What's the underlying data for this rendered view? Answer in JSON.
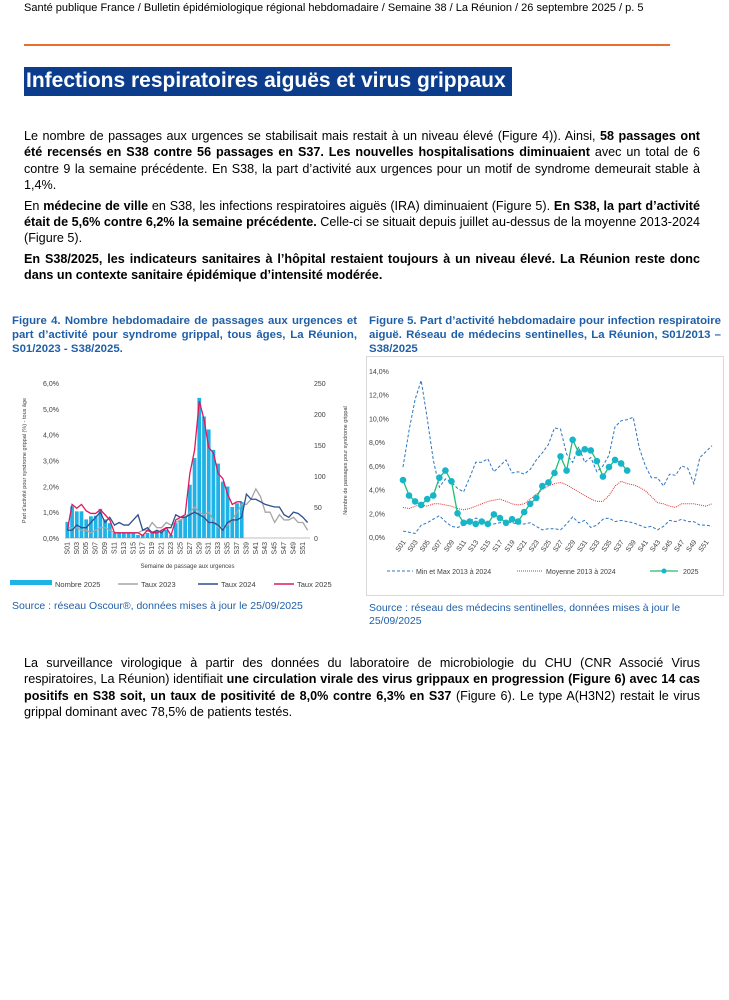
{
  "header": "Santé publique France / Bulletin épidémiologique régional hebdomadaire / Semaine 38 / La Réunion / 26 septembre 2025 / p. 5",
  "title": "Infections respiratoires aiguës et virus grippaux",
  "p1": {
    "a": "Le nombre de passages aux urgences se stabilisait mais restait à un niveau élevé (Figure 4)). Ainsi, ",
    "b": "58 passages ont été recensés en S38 contre 56 passages en S37. Les nouvelles hospitalisations diminuaient",
    "c": " avec un total de 6 contre 9 la semaine précédente. En S38, la part d’activité aux urgences pour un motif de syndrome demeurait stable à 1,4%."
  },
  "p2": {
    "a": "En ",
    "b": "médecine de ville",
    "c": " en S38, les infections respiratoires aiguës (IRA) diminuaient (Figure 5). ",
    "d": "En S38, la part d’activité était de 5,6% contre 6,2% la semaine précédente.",
    "e": " Celle-ci se situait depuis juillet au-dessus de la moyenne 2013-2024 (Figure 5)."
  },
  "p3": "En S38/2025, les indicateurs sanitaires à l’hôpital restaient toujours à un niveau élevé. La Réunion reste donc dans un contexte sanitaire épidémique d’intensité modérée.",
  "fig4": {
    "caption": "Figure 4. Nombre hebdomadaire de passages aux urgences et part d’activité pour syndrome grippal, tous âges, La Réunion, S01/2023 - S38/2025.",
    "source": "Source : réseau Oscour®,  données mises à jour le  25/09/2025"
  },
  "fig5": {
    "caption": "Figure 5.  Part d’activité hebdomadaire pour infection respiratoire aiguë. Réseau de médecins sentinelles, La Réunion, S01/2013 – S38/2025",
    "source": "Source : réseau des médecins sentinelles, données mises à jour le 25/09/2025"
  },
  "p4": {
    "a": "La surveillance virologique à partir des données du laboratoire de microbiologie du CHU (CNR Associé Virus respiratoires, La Réunion) identifiait ",
    "b": "une circulation virale des virus grippaux en progression (Figure 6) avec 14 cas positifs en S38 soit, un taux de positivité de 8,0% contre 6,3% en S37",
    "c": " (Figure 6). Le type A(H3N2) restait le virus grippal dominant avec 78,5% de patients testés."
  },
  "colors": {
    "bars": "#1fb2e6",
    "t2023": "#a6a6a6",
    "t2024": "#2f4f8f",
    "t2025": "#e0185e",
    "minmax": "#2e75c0",
    "moy": "#e03030",
    "s2025": "#1fbf6f",
    "marker": "#17b5c8"
  },
  "chart_data": [
    {
      "type": "bar+line",
      "title": "",
      "xlabel": "Semaine de passage aux urgences",
      "ylabel": "Part d'activité pour syndrome grippal (%) - tous âge",
      "y2label": "Nombre de passages pour syndrome grippal",
      "ylim": [
        0,
        6
      ],
      "y2lim": [
        0,
        250
      ],
      "yticks": [
        "0,0%",
        "1,0%",
        "2,0%",
        "3,0%",
        "4,0%",
        "5,0%",
        "6,0%"
      ],
      "y2ticks": [
        "0",
        "50",
        "100",
        "150",
        "200",
        "250"
      ],
      "weeks": 52,
      "series": [
        {
          "name": "Nombre 2025",
          "axis": "right",
          "kind": "bar",
          "values": [
            26,
            51,
            43,
            43,
            30,
            35,
            36,
            47,
            30,
            24,
            8,
            8,
            8,
            8,
            8,
            5,
            5,
            8,
            11,
            11,
            11,
            13,
            5,
            24,
            30,
            35,
            86,
            129,
            226,
            196,
            175,
            142,
            120,
            91,
            83,
            50,
            56,
            58
          ]
        },
        {
          "name": "Taux 2023",
          "kind": "line",
          "values": [
            0.4,
            0.4,
            0.4,
            0.3,
            0.3,
            0.2,
            0.3,
            0.4,
            0.4,
            0.3,
            0.2,
            0.2,
            0.2,
            0.2,
            0.2,
            0.2,
            0.3,
            0.3,
            0.6,
            0.4,
            0.4,
            0.6,
            0.5,
            0.6,
            0.7,
            0.8,
            1.0,
            1.2,
            1.0,
            0.9,
            1.0,
            0.7,
            0.4,
            0.4,
            0.5,
            0.7,
            1.0,
            1.3,
            1.3,
            1.5,
            1.9,
            1.6,
            1.0,
            1.0,
            0.6,
            0.9,
            0.7,
            0.7,
            0.8,
            0.6,
            0.6,
            0.3
          ]
        },
        {
          "name": "Taux 2024",
          "kind": "line",
          "values": [
            0.3,
            0.3,
            0.5,
            0.4,
            0.4,
            0.6,
            0.8,
            1.0,
            0.6,
            0.8,
            0.5,
            0.6,
            0.5,
            0.5,
            0.7,
            0.9,
            0.3,
            0.4,
            0.2,
            0.3,
            0.2,
            0.4,
            0.4,
            0.9,
            0.8,
            0.8,
            0.9,
            1.0,
            0.9,
            0.8,
            0.6,
            0.6,
            0.5,
            0.3,
            0.6,
            0.7,
            0.7,
            0.8,
            1.7,
            1.5,
            1.5,
            1.4,
            1.3,
            1.25,
            1.2,
            1.2,
            0.9,
            0.8,
            1.0,
            0.95,
            0.8,
            0.6
          ]
        },
        {
          "name": "Taux 2025",
          "kind": "line",
          "values": [
            0.3,
            1.3,
            1.15,
            1.3,
            1.05,
            0.95,
            0.95,
            1.1,
            0.9,
            0.7,
            0.2,
            0.2,
            0.2,
            0.2,
            0.2,
            0.2,
            0.1,
            0.3,
            0.2,
            0.2,
            0.3,
            0.4,
            0.1,
            0.7,
            0.8,
            0.9,
            2.5,
            3.4,
            5.3,
            4.6,
            3.5,
            3.3,
            2.5,
            2.3,
            1.7,
            1.3,
            1.4,
            1.4
          ]
        }
      ]
    },
    {
      "type": "line",
      "title": "",
      "ylim": [
        0,
        14
      ],
      "yticks": [
        "0,0%",
        "2,0%",
        "4,0%",
        "6,0%",
        "8,0%",
        "10,0%",
        "12,0%",
        "14,0%"
      ],
      "weeks": 52,
      "series": [
        {
          "name": "Min et Max 2013 à 2024",
          "part": "min",
          "values": [
            0.5,
            0.4,
            0.3,
            1.0,
            1.2,
            1.5,
            1.8,
            1.3,
            0.9,
            0.8,
            1.0,
            1.3,
            1.6,
            1.4,
            1.1,
            1.1,
            1.2,
            1.3,
            1.2,
            1.1,
            1.1,
            1.2,
            0.9,
            0.6,
            0.7,
            0.7,
            0.6,
            1.1,
            1.7,
            1.2,
            1.4,
            0.8,
            1.0,
            1.5,
            1.6,
            1.3,
            1.4,
            1.3,
            1.2,
            1.0,
            0.8,
            0.9,
            0.6,
            0.9,
            1.4,
            1.3,
            1.5,
            1.3,
            1.3,
            1.0,
            1.0,
            0.9
          ]
        },
        {
          "name": "Min et Max 2013 à 2024",
          "part": "max",
          "values": [
            5.9,
            9.0,
            11.6,
            13.2,
            10.0,
            6.5,
            4.2,
            4.9,
            4.6,
            4.1,
            3.8,
            5.0,
            6.3,
            6.3,
            6.6,
            5.5,
            6.0,
            6.5,
            5.4,
            5.5,
            5.3,
            5.7,
            6.5,
            7.1,
            7.8,
            9.2,
            9.1,
            7.0,
            6.3,
            7.6,
            6.3,
            6.7,
            5.5,
            6.0,
            6.9,
            9.3,
            9.8,
            9.9,
            10.1,
            7.5,
            6.0,
            5.0,
            5.0,
            4.3,
            5.3,
            5.2,
            6.0,
            5.8,
            4.5,
            6.7,
            7.2,
            7.7
          ]
        },
        {
          "name": "Moyenne 2013 à 2024",
          "values": [
            2.5,
            2.4,
            2.6,
            2.7,
            2.6,
            2.8,
            2.8,
            2.7,
            2.6,
            2.4,
            2.3,
            2.4,
            2.6,
            2.8,
            3.0,
            3.1,
            3.2,
            3.0,
            2.8,
            2.7,
            2.8,
            3.2,
            3.6,
            4.0,
            4.3,
            4.5,
            4.6,
            4.4,
            4.1,
            3.8,
            3.5,
            3.2,
            3.0,
            3.0,
            3.5,
            4.3,
            4.7,
            4.5,
            4.4,
            4.2,
            3.9,
            3.4,
            2.9,
            2.8,
            2.6,
            2.5,
            2.8,
            2.8,
            2.8,
            2.7,
            2.6,
            2.8
          ]
        },
        {
          "name": "2025",
          "values": [
            4.8,
            3.5,
            3.0,
            2.7,
            3.2,
            3.5,
            5.0,
            5.6,
            4.7,
            2.0,
            1.2,
            1.3,
            1.1,
            1.3,
            1.1,
            1.9,
            1.6,
            1.2,
            1.5,
            1.3,
            2.1,
            2.8,
            3.3,
            4.3,
            4.6,
            5.4,
            6.8,
            5.6,
            8.2,
            7.1,
            7.4,
            7.3,
            6.4,
            5.1,
            5.9,
            6.5,
            6.2,
            5.6
          ]
        }
      ],
      "legend": [
        "Min et Max 2013 à 2024",
        "Moyenne 2013 à 2024",
        "2025"
      ]
    }
  ]
}
